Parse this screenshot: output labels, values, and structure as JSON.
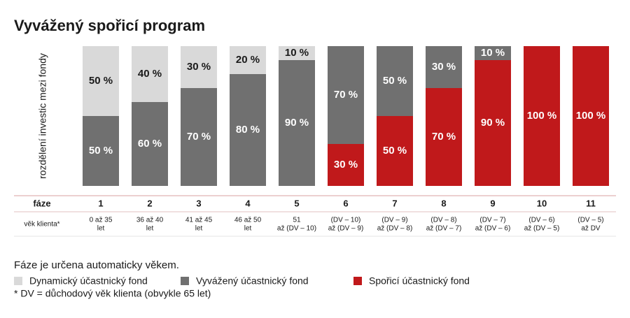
{
  "chart_data": {
    "type": "stacked_bar",
    "title": "Vyvážený spořicí program",
    "y_label": "rozdělení investic mezi fondy",
    "row_labels": [
      "fáze",
      "věk klienta*"
    ],
    "categories": [
      "1",
      "2",
      "3",
      "4",
      "5",
      "6",
      "7",
      "8",
      "9",
      "10",
      "11"
    ],
    "age_groups": [
      [
        "0 až 35",
        "let"
      ],
      [
        "36 až 40",
        "let"
      ],
      [
        "41 až 45",
        "let"
      ],
      [
        "46 až 50",
        "let"
      ],
      [
        "51",
        "až (DV – 10)"
      ],
      [
        "(DV – 10)",
        "až (DV – 9)"
      ],
      [
        "(DV – 9)",
        "až (DV – 8)"
      ],
      [
        "(DV – 8)",
        "až (DV – 7)"
      ],
      [
        "(DV – 7)",
        "až (DV – 6)"
      ],
      [
        "(DV – 6)",
        "až (DV – 5)"
      ],
      [
        "(DV – 5)",
        "až DV"
      ]
    ],
    "ylim": [
      0,
      100
    ],
    "series": [
      {
        "name": "Dynamický účastnický fond",
        "color": "#d9d9d9",
        "label_color": "#1a1a1a",
        "values": [
          50,
          40,
          30,
          20,
          10,
          0,
          0,
          0,
          0,
          0,
          0
        ],
        "value_labels": [
          "50 %",
          "40 %",
          "30 %",
          "20 %",
          "10 %",
          null,
          null,
          null,
          null,
          null,
          null
        ]
      },
      {
        "name": "Vyvážený účastnický fond",
        "color": "#707070",
        "label_color": "#ffffff",
        "values": [
          50,
          60,
          70,
          80,
          90,
          70,
          50,
          30,
          10,
          0,
          0
        ],
        "value_labels": [
          "50 %",
          "60 %",
          "70 %",
          "80 %",
          "90 %",
          "70 %",
          "50 %",
          "30 %",
          "10 %",
          null,
          null
        ]
      },
      {
        "name": "Spořicí účastnický fond",
        "color": "#c0191b",
        "label_color": "#ffffff",
        "values": [
          0,
          0,
          0,
          0,
          0,
          30,
          50,
          70,
          90,
          100,
          100
        ],
        "value_labels": [
          null,
          null,
          null,
          null,
          null,
          "30 %",
          "50 %",
          "70 %",
          "90 %",
          "100 %",
          "100 %"
        ]
      }
    ],
    "note": "Fáze je určena automaticky věkem.",
    "footnote": "* DV = důchodový věk klienta (obvykle 65 let)"
  }
}
